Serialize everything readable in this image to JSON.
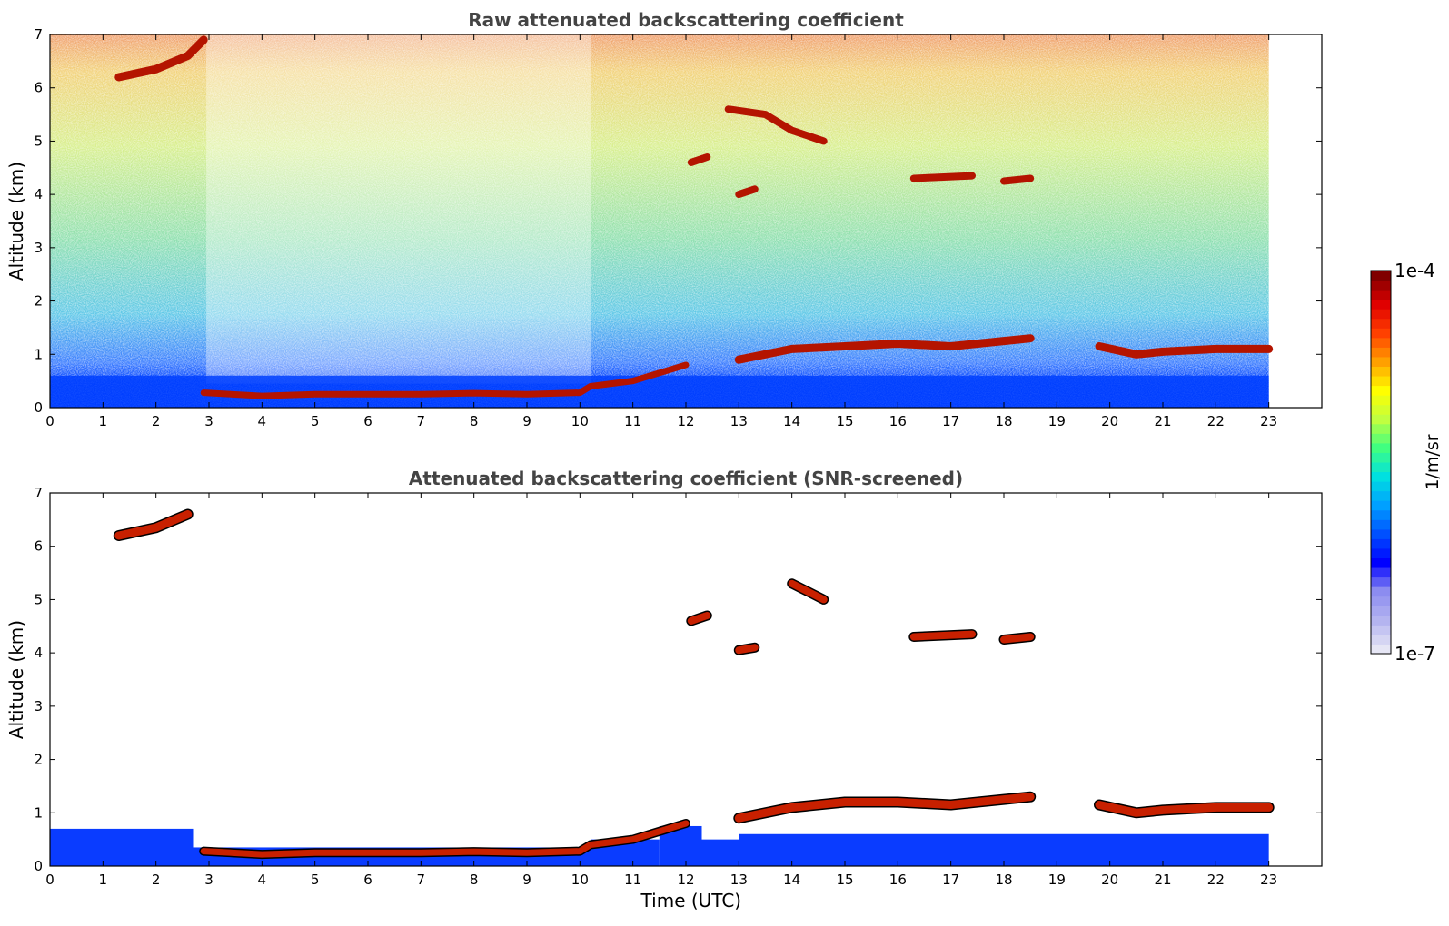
{
  "chart_data": [
    {
      "type": "heatmap",
      "title": "Raw attenuated backscattering coefficient",
      "ylabel": "Altitude (km)",
      "xlabel": "",
      "xlim": [
        0,
        24
      ],
      "ylim": [
        0,
        7
      ],
      "x_ticks": [
        "0",
        "1",
        "2",
        "3",
        "4",
        "5",
        "6",
        "7",
        "8",
        "9",
        "10",
        "11",
        "12",
        "13",
        "14",
        "15",
        "16",
        "17",
        "18",
        "19",
        "20",
        "21",
        "22",
        "23"
      ],
      "y_ticks": [
        "0",
        "1",
        "2",
        "3",
        "4",
        "5",
        "6",
        "7"
      ],
      "data_time_range": [
        0,
        23
      ],
      "features": [
        {
          "kind": "cloud_layer",
          "points": [
            [
              1.3,
              6.2
            ],
            [
              2.0,
              6.35
            ],
            [
              2.6,
              6.6
            ],
            [
              2.9,
              6.9
            ]
          ],
          "intensity": "high"
        },
        {
          "kind": "boundary_layer_top",
          "points": [
            [
              2.9,
              0.28
            ],
            [
              4.0,
              0.22
            ],
            [
              5.0,
              0.25
            ],
            [
              6.0,
              0.25
            ],
            [
              7.0,
              0.25
            ],
            [
              8.0,
              0.27
            ],
            [
              9.0,
              0.25
            ],
            [
              10.0,
              0.28
            ],
            [
              10.2,
              0.4
            ],
            [
              11.0,
              0.5
            ],
            [
              11.5,
              0.65
            ],
            [
              12.0,
              0.8
            ]
          ],
          "intensity": "high"
        },
        {
          "kind": "cloud_layer",
          "points": [
            [
              13.0,
              0.9
            ],
            [
              14.0,
              1.1
            ],
            [
              15.0,
              1.15
            ],
            [
              16.0,
              1.2
            ],
            [
              17.0,
              1.15
            ],
            [
              18.0,
              1.25
            ],
            [
              18.5,
              1.3
            ]
          ],
          "intensity": "high"
        },
        {
          "kind": "cloud_layer",
          "points": [
            [
              19.8,
              1.15
            ],
            [
              20.5,
              1.0
            ],
            [
              21.0,
              1.05
            ],
            [
              22.0,
              1.1
            ],
            [
              23.0,
              1.1
            ]
          ],
          "intensity": "high"
        },
        {
          "kind": "cloud_patch",
          "points": [
            [
              12.1,
              4.6
            ],
            [
              12.4,
              4.7
            ]
          ],
          "intensity": "high"
        },
        {
          "kind": "cloud_patch",
          "points": [
            [
              13.0,
              4.0
            ],
            [
              13.3,
              4.1
            ]
          ],
          "intensity": "high"
        },
        {
          "kind": "cloud_patch",
          "points": [
            [
              12.8,
              5.6
            ],
            [
              13.5,
              5.5
            ],
            [
              14.0,
              5.2
            ],
            [
              14.6,
              5.0
            ]
          ],
          "intensity": "high"
        },
        {
          "kind": "cloud_patch",
          "points": [
            [
              16.3,
              4.3
            ],
            [
              17.4,
              4.35
            ]
          ],
          "intensity": "high"
        },
        {
          "kind": "cloud_patch",
          "points": [
            [
              18.0,
              4.25
            ],
            [
              18.5,
              4.3
            ]
          ],
          "intensity": "high"
        }
      ]
    },
    {
      "type": "heatmap",
      "title": "Attenuated backscattering coefficient (SNR-screened)",
      "ylabel": "Altitude (km)",
      "xlabel": "Time (UTC)",
      "xlim": [
        0,
        24
      ],
      "ylim": [
        0,
        7
      ],
      "x_ticks": [
        "0",
        "1",
        "2",
        "3",
        "4",
        "5",
        "6",
        "7",
        "8",
        "9",
        "10",
        "11",
        "12",
        "13",
        "14",
        "15",
        "16",
        "17",
        "18",
        "19",
        "20",
        "21",
        "22",
        "23"
      ],
      "y_ticks": [
        "0",
        "1",
        "2",
        "3",
        "4",
        "5",
        "6",
        "7"
      ],
      "data_time_range": [
        0,
        23
      ],
      "features": [
        {
          "kind": "cloud_layer",
          "points": [
            [
              1.3,
              6.2
            ],
            [
              2.0,
              6.35
            ],
            [
              2.6,
              6.6
            ]
          ],
          "intensity": "high"
        },
        {
          "kind": "boundary_layer_top",
          "points": [
            [
              2.9,
              0.28
            ],
            [
              4.0,
              0.22
            ],
            [
              5.0,
              0.25
            ],
            [
              6.0,
              0.25
            ],
            [
              7.0,
              0.25
            ],
            [
              8.0,
              0.27
            ],
            [
              9.0,
              0.25
            ],
            [
              10.0,
              0.28
            ],
            [
              10.2,
              0.4
            ],
            [
              11.0,
              0.5
            ],
            [
              11.5,
              0.65
            ],
            [
              12.0,
              0.8
            ]
          ],
          "intensity": "high"
        },
        {
          "kind": "cloud_layer",
          "points": [
            [
              13.0,
              0.9
            ],
            [
              14.0,
              1.1
            ],
            [
              15.0,
              1.2
            ],
            [
              16.0,
              1.2
            ],
            [
              17.0,
              1.15
            ],
            [
              18.0,
              1.25
            ],
            [
              18.5,
              1.3
            ]
          ],
          "intensity": "high"
        },
        {
          "kind": "cloud_layer",
          "points": [
            [
              19.8,
              1.15
            ],
            [
              20.5,
              1.0
            ],
            [
              21.0,
              1.05
            ],
            [
              22.0,
              1.1
            ],
            [
              23.0,
              1.1
            ]
          ],
          "intensity": "high"
        },
        {
          "kind": "cloud_patch",
          "points": [
            [
              12.1,
              4.6
            ],
            [
              12.4,
              4.7
            ]
          ],
          "intensity": "high"
        },
        {
          "kind": "cloud_patch",
          "points": [
            [
              13.0,
              4.05
            ],
            [
              13.3,
              4.1
            ]
          ],
          "intensity": "high"
        },
        {
          "kind": "cloud_patch",
          "points": [
            [
              14.0,
              5.3
            ],
            [
              14.6,
              5.0
            ]
          ],
          "intensity": "high"
        },
        {
          "kind": "cloud_patch",
          "points": [
            [
              16.3,
              4.3
            ],
            [
              17.4,
              4.35
            ]
          ],
          "intensity": "high"
        },
        {
          "kind": "cloud_patch",
          "points": [
            [
              18.0,
              4.25
            ],
            [
              18.5,
              4.3
            ]
          ],
          "intensity": "high"
        }
      ]
    }
  ],
  "colorbar": {
    "label": "1/m/sr",
    "max_label": "1e-4",
    "min_label": "1e-7",
    "colors": [
      "#e6e6f5",
      "#b4b4f0",
      "#8c8cf0",
      "#0000ff",
      "#0050ff",
      "#00a0ff",
      "#00e0e0",
      "#40ff80",
      "#c0ff40",
      "#ffff00",
      "#ffa000",
      "#ff4000",
      "#e00000",
      "#800000"
    ]
  }
}
